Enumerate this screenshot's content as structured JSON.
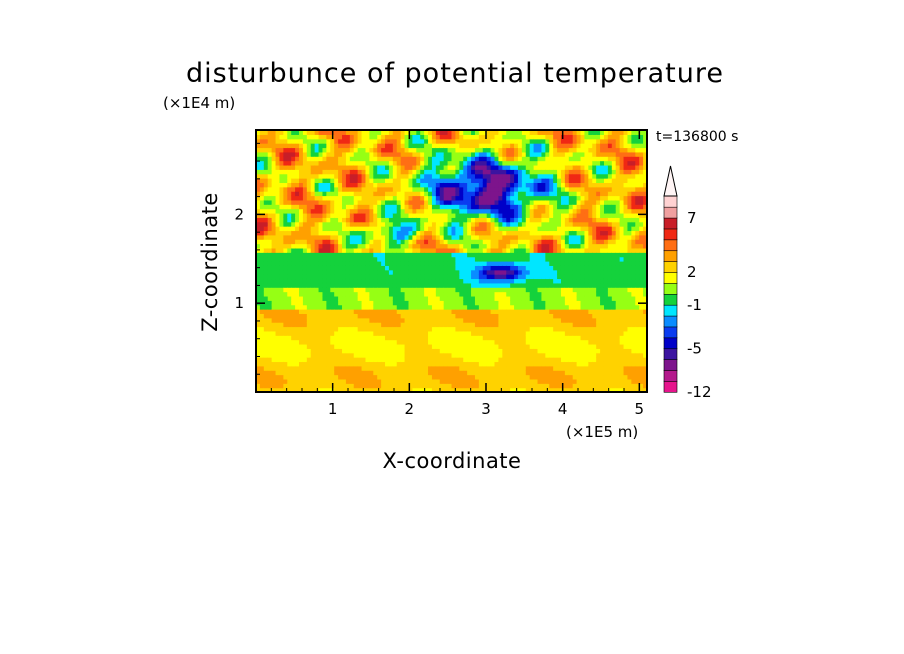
{
  "chart_data": {
    "type": "heatmap",
    "title": "disturbunce of potential temperature",
    "xlabel": "X-coordinate",
    "ylabel": "Z-coordinate",
    "x_unit": "(×1E5 m)",
    "y_unit": "(×1E4 m)",
    "time_label": "t=136800 s",
    "xlim": [
      0,
      5.1
    ],
    "ylim": [
      0,
      2.95
    ],
    "x_ticks": [
      "1",
      "2",
      "3",
      "4",
      "5"
    ],
    "x_tick_values": [
      1,
      2,
      3,
      4,
      5
    ],
    "y_ticks": [
      "1",
      "2"
    ],
    "y_tick_values": [
      1,
      2
    ],
    "colorbar": {
      "levels": [
        -12,
        -10,
        -8,
        -6,
        -5,
        -4,
        -3,
        -2,
        -1,
        0,
        1,
        2,
        3,
        4,
        5,
        6,
        7,
        8,
        9
      ],
      "labels": [
        "-12",
        "-5",
        "-1",
        "2",
        "7"
      ],
      "label_values": [
        -12,
        -5,
        -1,
        2,
        7
      ],
      "colors": [
        "#e6148c",
        "#b4198c",
        "#7d148c",
        "#3c14a0",
        "#0000c8",
        "#0a3cf0",
        "#0a8cff",
        "#00e6ff",
        "#14d23c",
        "#96ff14",
        "#ffff00",
        "#ffd200",
        "#ffa000",
        "#ff6e14",
        "#f02814",
        "#c81e28",
        "#f0a0a0",
        "#ffd2d2"
      ],
      "extend": "max"
    },
    "grid": false,
    "legend_position": "right"
  }
}
